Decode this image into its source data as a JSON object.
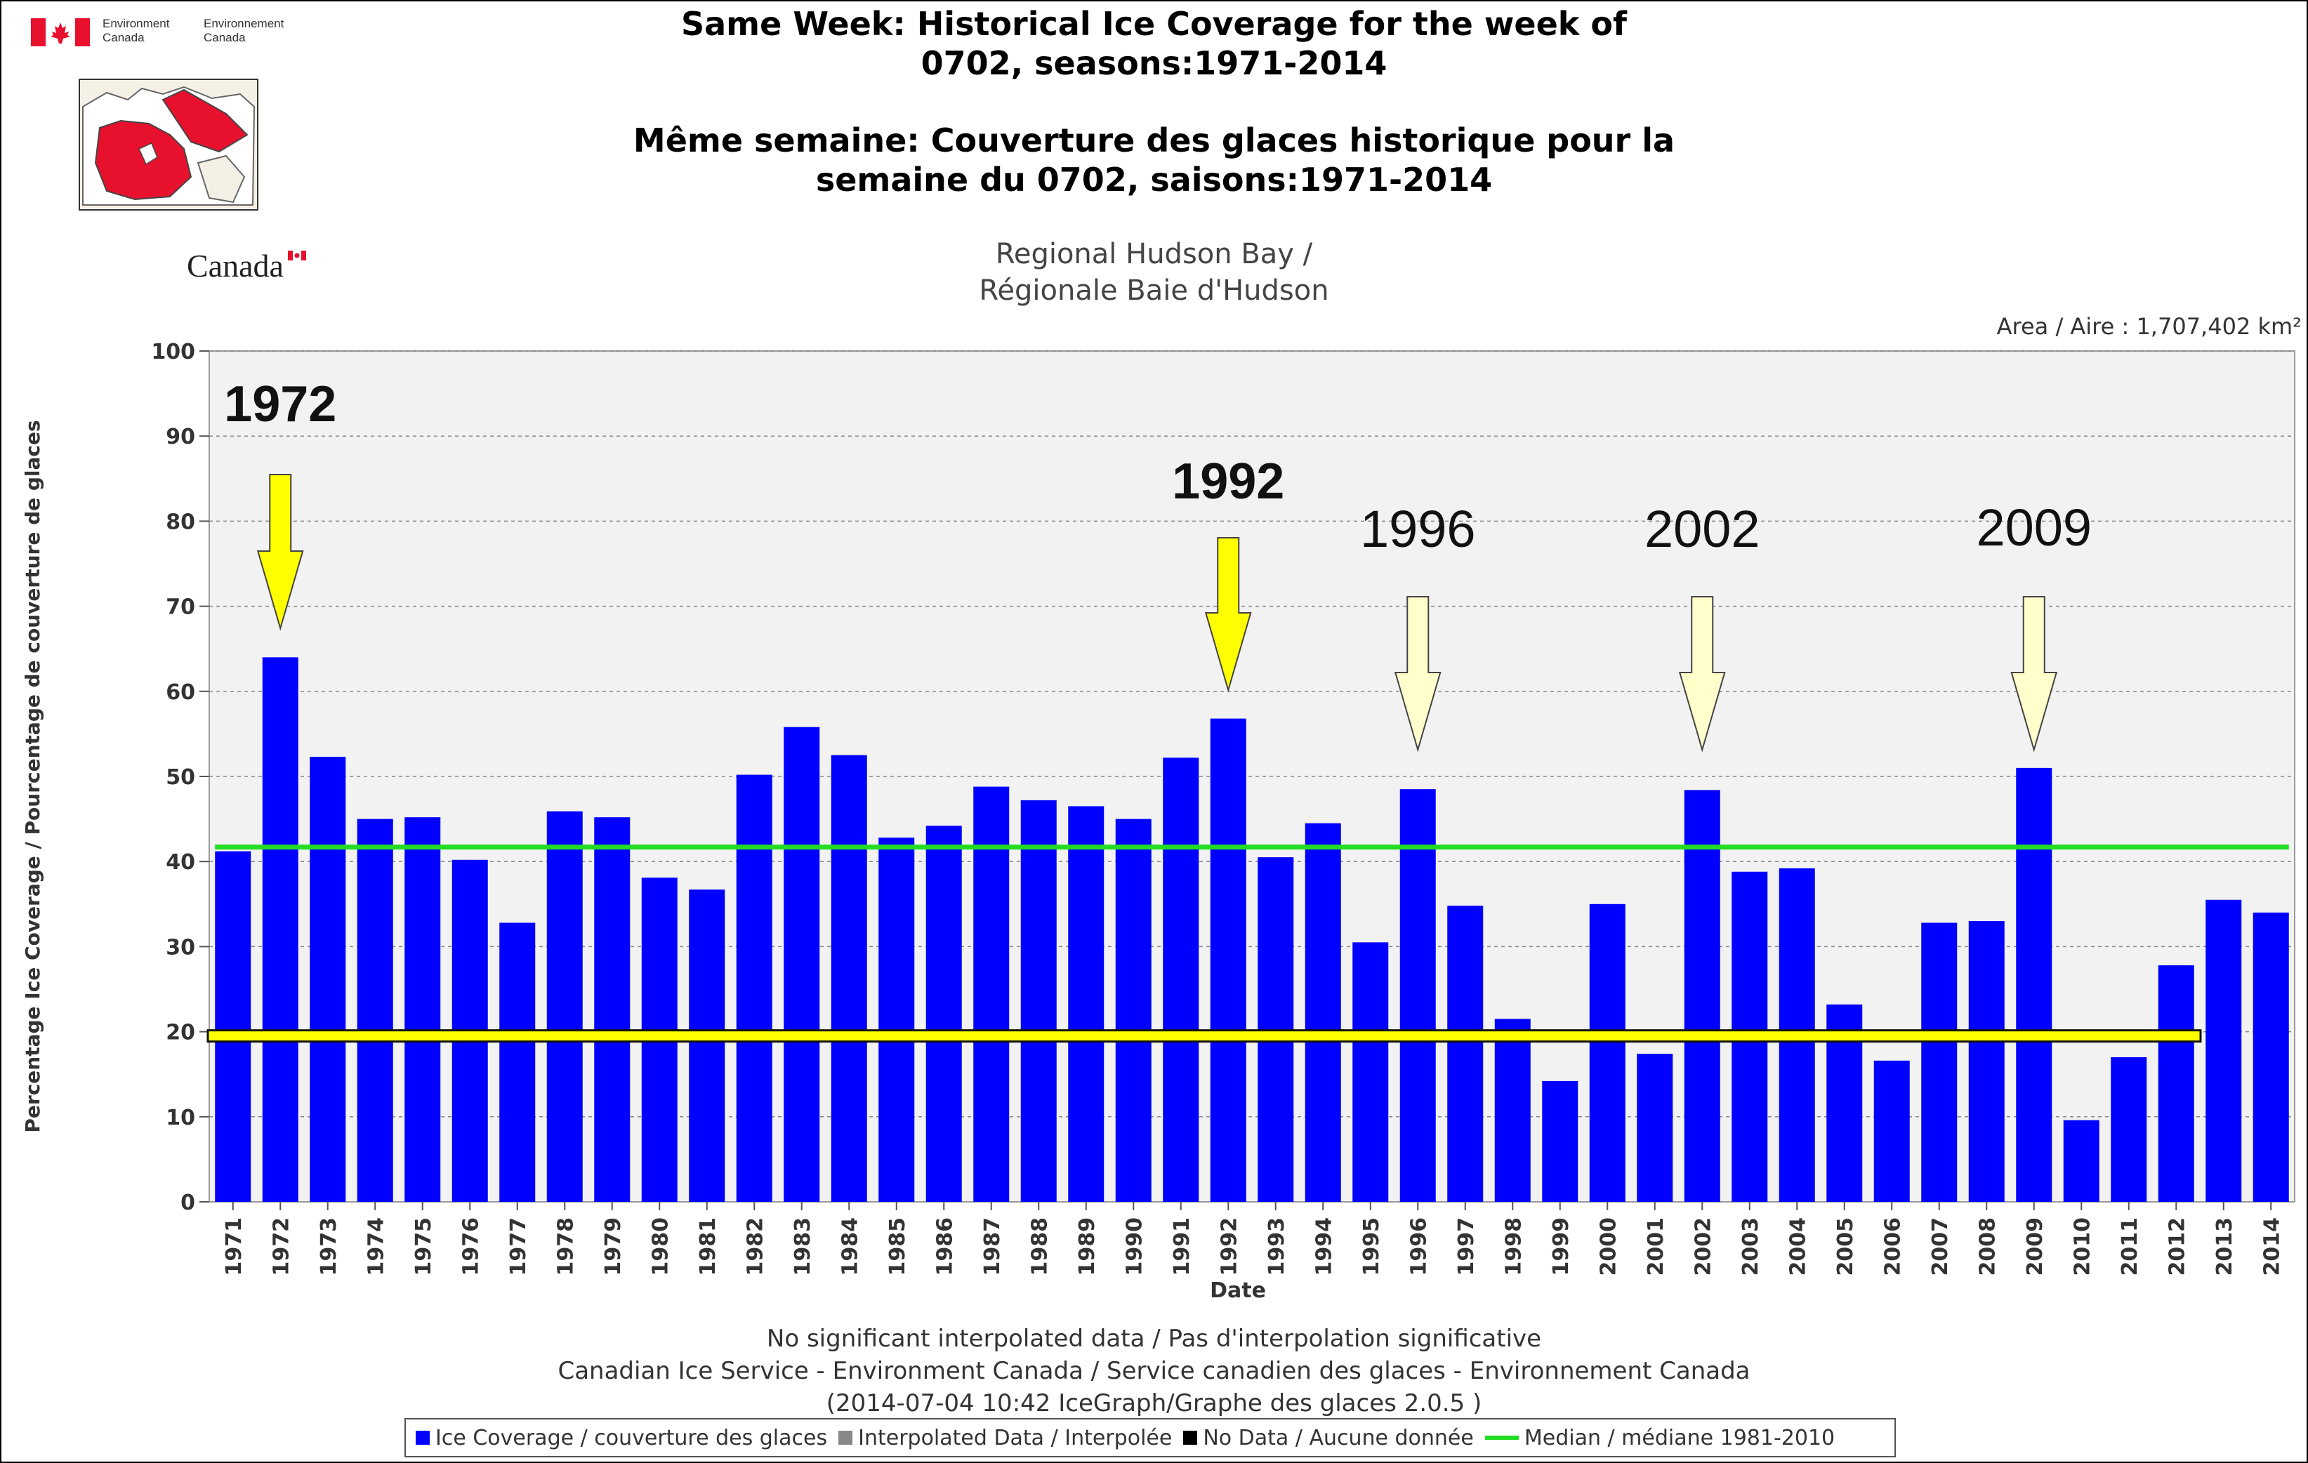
{
  "logo": {
    "en_line1": "Environment",
    "en_line2": "Canada",
    "fr_line1": "Environnement",
    "fr_line2": "Canada",
    "wordmark": "Canada"
  },
  "title": {
    "line1": "Same Week: Historical Ice Coverage for the week of",
    "line2": "0702, seasons:1971-2014",
    "line3": "Même semaine: Couverture des glaces historique pour la",
    "line4": "semaine du 0702, saisons:1971-2014"
  },
  "region": {
    "line1": "Regional Hudson Bay /",
    "line2": "Régionale Baie d'Hudson"
  },
  "area_label": "Area / Aire : 1,707,402 km²",
  "footer": {
    "line1": "No significant interpolated data / Pas d'interpolation significative",
    "line2": "Canadian Ice Service - Environment Canada / Service canadien des glaces - Environnement Canada",
    "line3": "(2014-07-04 10:42 IceGraph/Graphe des glaces 2.0.5 )"
  },
  "legend": {
    "items": [
      {
        "label": "Ice Coverage / couverture des glaces",
        "color": "#0000ff",
        "kind": "box"
      },
      {
        "label": "Interpolated Data / Interpolée",
        "color": "#888888",
        "kind": "box"
      },
      {
        "label": "No Data / Aucune donnée",
        "color": "#000000",
        "kind": "box"
      },
      {
        "label": "Median / médiane 1981-2010",
        "color": "#22dd22",
        "kind": "line"
      }
    ]
  },
  "colors": {
    "bar": "#0000ff",
    "median": "#22dd22",
    "threshold": "#ffff00",
    "arrow_bold": "#ffff00",
    "arrow_light": "#ffffcc",
    "plot_bg": "#f2f2f2",
    "grid": "#888888"
  },
  "chart_data": {
    "type": "bar",
    "title": "Same Week: Historical Ice Coverage for the week of 0702, seasons:1971-2014",
    "xlabel": "Date",
    "ylabel": "Percentage Ice Coverage / Pourcentage de couverture de glaces",
    "ylim": [
      0,
      100
    ],
    "yticks": [
      0,
      10,
      20,
      30,
      40,
      50,
      60,
      70,
      80,
      90,
      100
    ],
    "grid": true,
    "categories": [
      "1971",
      "1972",
      "1973",
      "1974",
      "1975",
      "1976",
      "1977",
      "1978",
      "1979",
      "1980",
      "1981",
      "1982",
      "1983",
      "1984",
      "1985",
      "1986",
      "1987",
      "1988",
      "1989",
      "1990",
      "1991",
      "1992",
      "1993",
      "1994",
      "1995",
      "1996",
      "1997",
      "1998",
      "1999",
      "2000",
      "2001",
      "2002",
      "2003",
      "2004",
      "2005",
      "2006",
      "2007",
      "2008",
      "2009",
      "2010",
      "2011",
      "2012",
      "2013",
      "2014"
    ],
    "values": [
      41.2,
      64.0,
      52.3,
      45.0,
      45.2,
      40.2,
      32.8,
      45.9,
      45.2,
      38.1,
      36.7,
      50.2,
      55.8,
      52.5,
      42.8,
      44.2,
      48.8,
      47.2,
      46.5,
      45.0,
      52.2,
      56.8,
      40.5,
      44.5,
      30.5,
      48.5,
      34.8,
      21.5,
      14.2,
      35.0,
      17.4,
      48.4,
      38.8,
      39.2,
      23.2,
      16.6,
      32.8,
      33.0,
      51.0,
      9.6,
      17.0,
      27.8,
      35.5,
      34.0
    ],
    "median": {
      "label": "Median / médiane 1981-2010",
      "value": 41.7
    },
    "threshold": {
      "value": 19.5
    },
    "annotations": [
      {
        "text": "1972",
        "year": "1972",
        "bold": true
      },
      {
        "text": "1992",
        "year": "1992",
        "bold": true
      },
      {
        "text": "1996",
        "year": "1996",
        "bold": false
      },
      {
        "text": "2002",
        "year": "2002",
        "bold": false
      },
      {
        "text": "2009",
        "year": "2009",
        "bold": false
      }
    ]
  }
}
